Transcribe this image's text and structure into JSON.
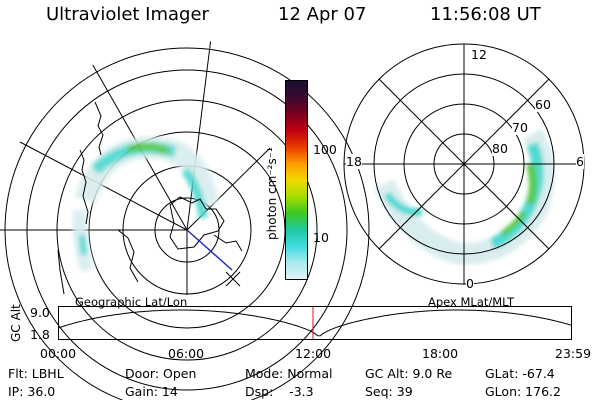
{
  "header": {
    "title": "Ultraviolet Imager",
    "date": "12 Apr 07",
    "time": "11:56:08 UT"
  },
  "left_panel": {
    "caption": "Geographic Lat/Lon"
  },
  "right_panel": {
    "caption": "Apex MLat/MLT",
    "mlt_labels": [
      "12",
      "18",
      "6",
      "0"
    ],
    "lat_labels": [
      "60",
      "70",
      "80"
    ]
  },
  "colorbar": {
    "unit_label": "photon cm⁻²s⁻¹",
    "ticks": [
      "100",
      "10"
    ],
    "colors": [
      "#1a1030",
      "#3a0a30",
      "#7a0020",
      "#c00010",
      "#e83a00",
      "#ff9a00",
      "#f2d800",
      "#a8dd00",
      "#3cc820",
      "#20c8a0",
      "#40dce0",
      "#a8eaee",
      "#e2f4f6"
    ]
  },
  "timeline": {
    "ylabel": "GC Alt",
    "y_ticks": [
      "9.0",
      "1.8"
    ],
    "x_ticks": [
      "00:00",
      "06:00",
      "12:00",
      "18:00",
      "23:59"
    ],
    "current_marker": "11:56"
  },
  "info": {
    "flt": "Flt: LBHL",
    "ip": "IP: 36.0",
    "door": "Door: Open",
    "gain": "Gain: 14",
    "mode": "Mode: Normal",
    "dsp": "Dsp:    -3.3",
    "gcalt": "GC Alt: 9.0 Re",
    "seq": "Seq: 39",
    "glat": "GLat: -67.4",
    "glon": "GLon: 176.2"
  },
  "colors": {
    "aurora_green": "#4fc83c",
    "aurora_cyan": "#48d8d0",
    "marker_red": "#e01010",
    "track_blue": "#2030c0"
  }
}
